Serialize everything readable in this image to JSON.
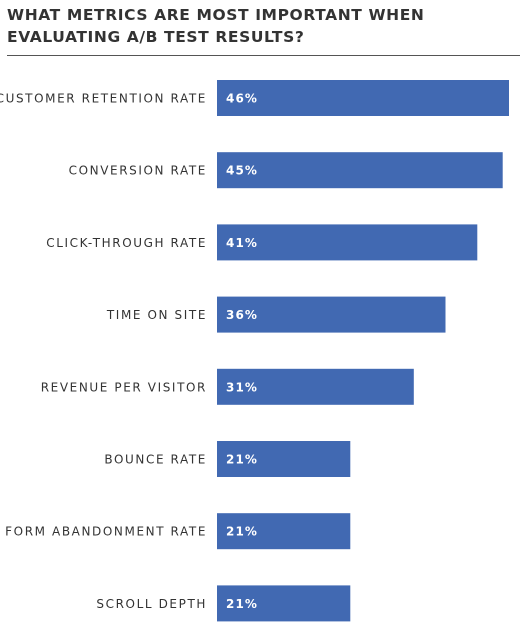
{
  "chart_data": {
    "type": "bar",
    "orientation": "horizontal",
    "title": "WHAT METRICS ARE MOST IMPORTANT WHEN EVALUATING A/B TEST RESULTS?",
    "categories": [
      "CUSTOMER RETENTION RATE",
      "CONVERSION RATE",
      "CLICK-THROUGH RATE",
      "TIME ON SITE",
      "REVENUE PER VISITOR",
      "BOUNCE RATE",
      "FORM ABANDONMENT RATE",
      "SCROLL DEPTH"
    ],
    "values": [
      46,
      45,
      41,
      36,
      31,
      21,
      21,
      21
    ],
    "value_labels": [
      "46%",
      "45%",
      "41%",
      "36%",
      "31%",
      "21%",
      "21%",
      "21%"
    ],
    "xlim": [
      0,
      46
    ],
    "grid": false,
    "legend": "none",
    "bar_color": "#4169b2"
  }
}
